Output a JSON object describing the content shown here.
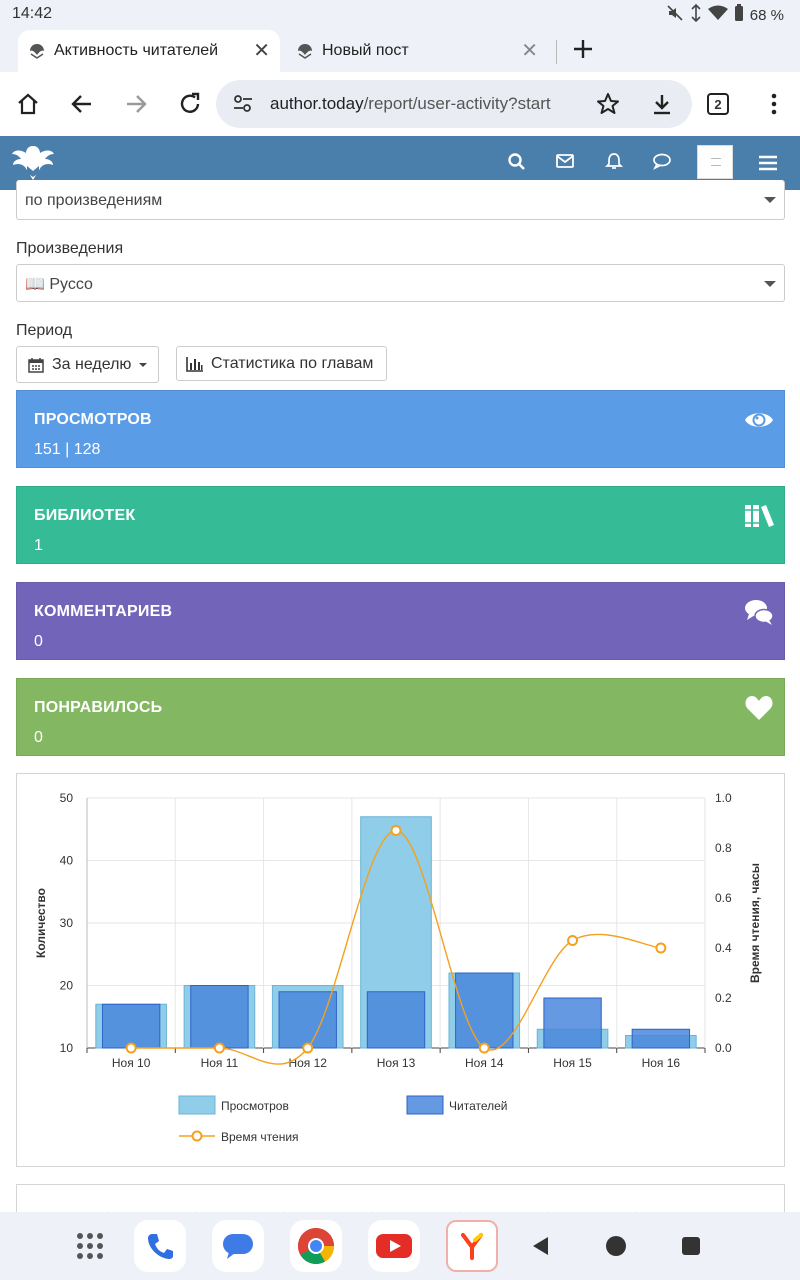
{
  "status": {
    "time": "14:42",
    "battery": "68 %"
  },
  "tabs": [
    {
      "title": "Активность читателей",
      "active": true
    },
    {
      "title": "Новый пост",
      "active": false
    }
  ],
  "address": {
    "host": "author.today",
    "path": "/report/user-activity?start",
    "tab_count": "2"
  },
  "form": {
    "group_select_value": "по произведениям",
    "works_label": "Произведения",
    "works_select_value": "📖 Руссо",
    "period_label": "Период",
    "period_button": "За неделю",
    "chapters_button": "Статистика по главам"
  },
  "cards": [
    {
      "title": "ПРОСМОТРОВ",
      "value": "151 | 128",
      "color": "#5b9ce6",
      "icon": "eye-icon"
    },
    {
      "title": "БИБЛИОТЕК",
      "value": "1",
      "color": "#36bb97",
      "icon": "books-icon"
    },
    {
      "title": "КОММЕНТАРИЕВ",
      "value": "0",
      "color": "#7265b9",
      "icon": "comments-icon"
    },
    {
      "title": "ПОНРАВИЛОСЬ",
      "value": "0",
      "color": "#84b762",
      "icon": "heart-icon"
    }
  ],
  "chart_data": {
    "type": "bar",
    "categories": [
      "Ноя 10",
      "Ноя 11",
      "Ноя 12",
      "Ноя 13",
      "Ноя 14",
      "Ноя 15",
      "Ноя 16"
    ],
    "series": [
      {
        "name": "Просмотров",
        "type": "bar",
        "axis": "left",
        "values": [
          17,
          20,
          20,
          47,
          22,
          13,
          12
        ],
        "color": "#90cde8"
      },
      {
        "name": "Читателей",
        "type": "bar",
        "axis": "left",
        "values": [
          17,
          20,
          19,
          19,
          22,
          18,
          13
        ],
        "color": "#4a87dc"
      },
      {
        "name": "Время чтения",
        "type": "line",
        "axis": "right",
        "values": [
          0.0,
          0.0,
          0.0,
          0.87,
          0.0,
          0.43,
          0.4
        ],
        "color": "#f5a01e"
      }
    ],
    "ylabel": "Количество",
    "ylabel_right": "Время чтения, часы",
    "ylim": [
      10,
      50
    ],
    "yticks": [
      "10",
      "20",
      "30",
      "40",
      "50"
    ],
    "ylim_right": [
      0,
      1
    ],
    "yticks_right": [
      "0.0",
      "0.2",
      "0.4",
      "0.6",
      "0.8",
      "1.0"
    ],
    "legend_position": "bottom",
    "grid": true
  }
}
